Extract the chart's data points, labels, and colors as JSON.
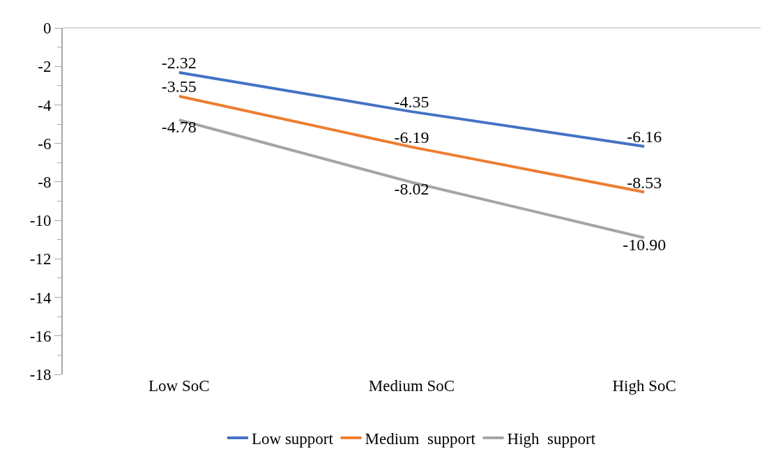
{
  "chart_data": {
    "type": "line",
    "categories": [
      "Low SoC",
      "Medium SoC",
      "High SoC"
    ],
    "series": [
      {
        "name": "Low support",
        "color": "#4472c4",
        "values": [
          -2.32,
          -4.35,
          -6.16
        ],
        "value_labels": [
          "-2.32",
          "-4.35",
          "-6.16"
        ]
      },
      {
        "name": "Medium  support",
        "color": "#ed7d31",
        "values": [
          -3.55,
          -6.19,
          -8.53
        ],
        "value_labels": [
          "-3.55",
          "-6.19",
          "-8.53"
        ]
      },
      {
        "name": "High  support",
        "color": "#a5a5a5",
        "values": [
          -4.78,
          -8.02,
          -10.9
        ],
        "value_labels": [
          "-4.78",
          "-8.02",
          "-10.90"
        ]
      }
    ],
    "ylim": [
      -18,
      0
    ],
    "yticks": [
      -18,
      -16,
      -14,
      -12,
      -10,
      -8,
      -6,
      -4,
      -2,
      0
    ],
    "grid": false,
    "legend": "bottom",
    "marker": "none",
    "line_style": "solid"
  }
}
